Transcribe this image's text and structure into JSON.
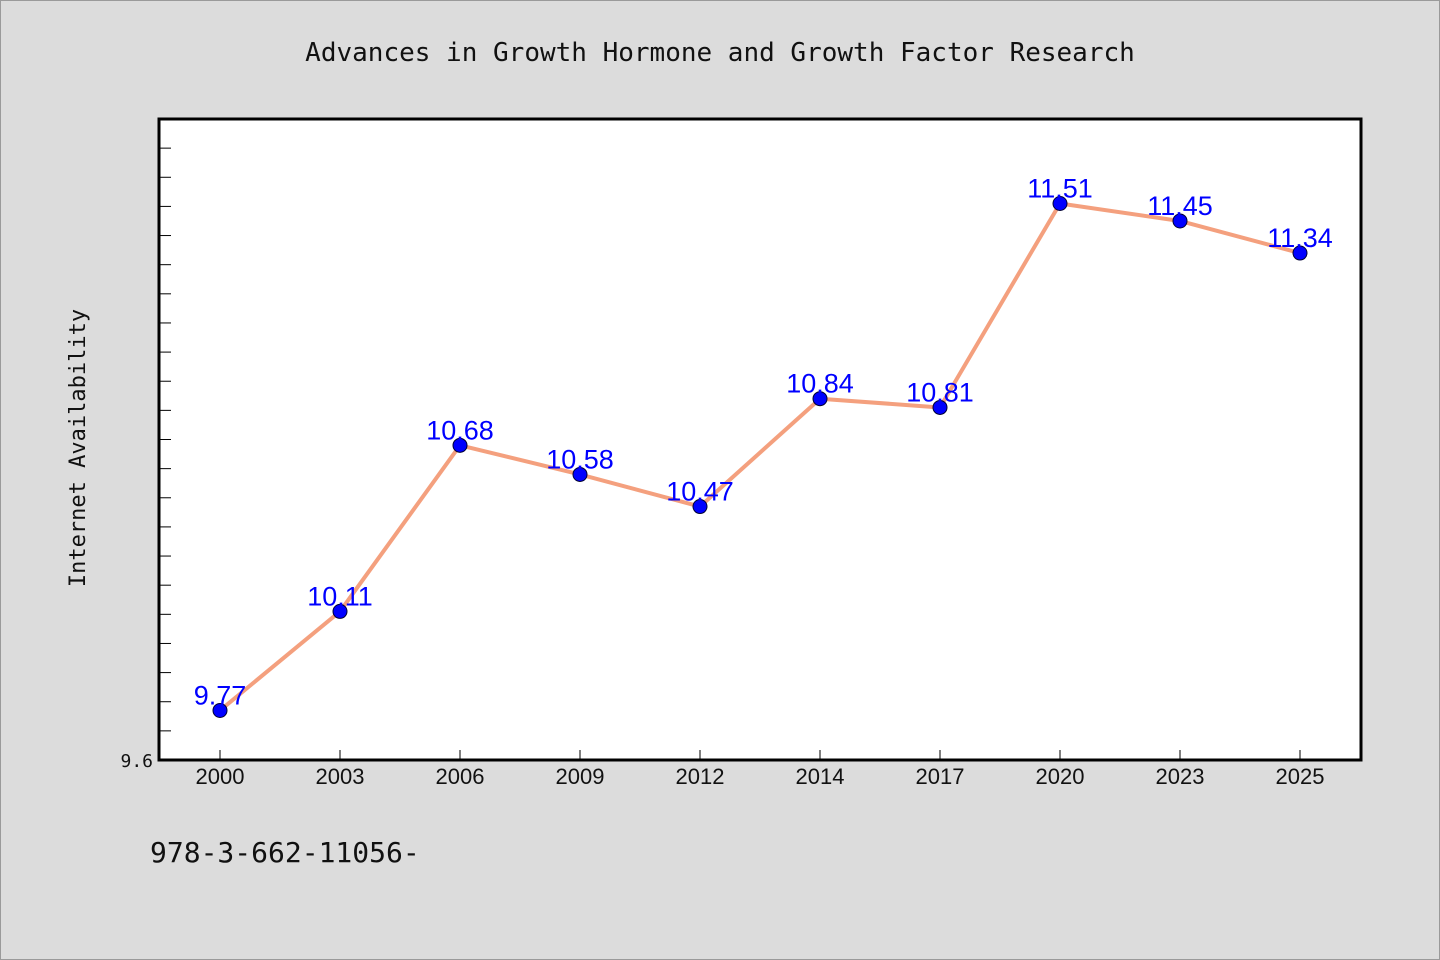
{
  "footer": {
    "text": "978-3-662-11056-"
  },
  "colors": {
    "background": "#dcdcdc",
    "plot_background": "#ffffff",
    "line": "#f4a07e",
    "marker": "#0000ff",
    "data_label": "#0000ff"
  },
  "chart_data": {
    "type": "line",
    "title": "Advances in Growth Hormone and Growth Factor Research",
    "xlabel": "",
    "ylabel": "Internet Availability",
    "categories": [
      "2000",
      "2003",
      "2006",
      "2009",
      "2012",
      "2014",
      "2017",
      "2020",
      "2023",
      "2025"
    ],
    "series": [
      {
        "values": [
          9.77,
          10.11,
          10.68,
          10.58,
          10.47,
          10.84,
          10.81,
          11.51,
          11.45,
          11.34
        ],
        "labels": [
          "9.77",
          "10.11",
          "10.68",
          "10.58",
          "10.47",
          "10.84",
          "10.81",
          "11.51",
          "11.45",
          "11.34"
        ]
      }
    ],
    "ylim": [
      9.6,
      11.8
    ],
    "y_tick_labels": [
      {
        "value": 9.6,
        "label": "9.6"
      }
    ],
    "y_minor_tick_step": 0.1,
    "grid": false,
    "legend": "none",
    "markers": "circle"
  }
}
